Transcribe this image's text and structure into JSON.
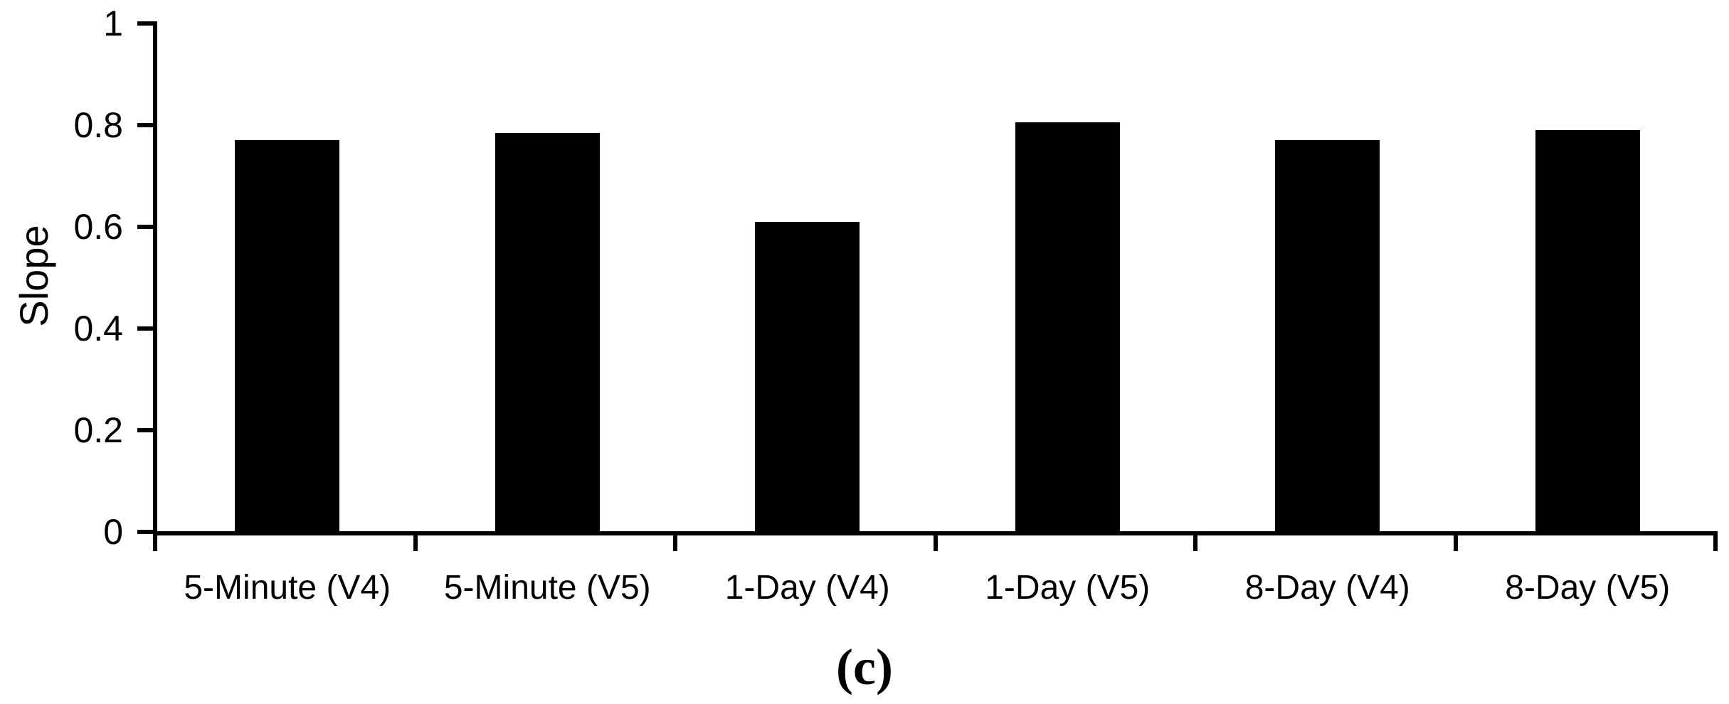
{
  "caption": "(c)",
  "chart_data": {
    "type": "bar",
    "title": "",
    "categories": [
      "5-Minute (V4)",
      "5-Minute (V5)",
      "1-Day (V4)",
      "1-Day (V5)",
      "8-Day (V4)",
      "8-Day (V5)"
    ],
    "values": [
      0.77,
      0.785,
      0.61,
      0.805,
      0.77,
      0.79
    ],
    "xlabel": "",
    "ylabel": "Slope",
    "ylim": [
      0,
      1
    ],
    "ytick_labels": [
      "0",
      "0.2",
      "0.4",
      "0.6",
      "0.8",
      "1"
    ],
    "ytick_values": [
      0,
      0.2,
      0.4,
      0.6,
      0.8,
      1
    ],
    "bar_color": "#000000",
    "axis_color": "#000000",
    "background_color": "#ffffff",
    "grid": false,
    "legend_position": "none"
  }
}
